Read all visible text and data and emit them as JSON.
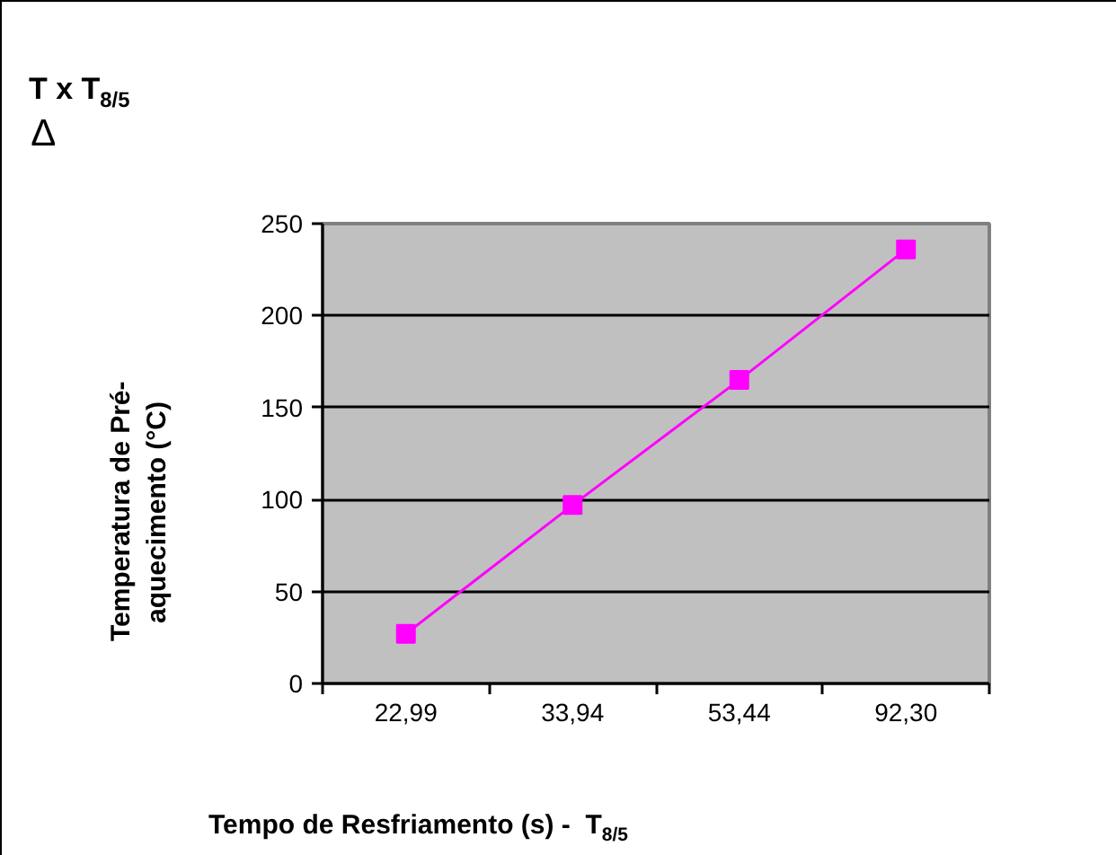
{
  "chart_data": {
    "type": "line",
    "title": "T x T$_{8/5}$",
    "subtitle": "Δ",
    "xlabel": "Tempo de Resfriamento (s) -  T$_{8/5}$",
    "ylabel": "Temperatura de Pré-aquecimento (°C)",
    "categories": [
      "22,99",
      "33,94",
      "53,44",
      "92,30"
    ],
    "series": [
      {
        "color": "#ff00ff",
        "values": [
          27,
          97,
          165,
          236
        ]
      }
    ],
    "ylim": [
      0,
      250
    ],
    "yticks": [
      0,
      50,
      100,
      150,
      200,
      250
    ],
    "grid": "y",
    "marker": "square",
    "line_style": "solid"
  }
}
